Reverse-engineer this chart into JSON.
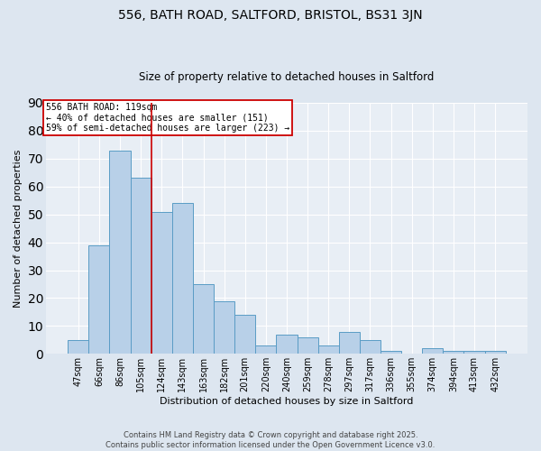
{
  "title1": "556, BATH ROAD, SALTFORD, BRISTOL, BS31 3JN",
  "title2": "Size of property relative to detached houses in Saltford",
  "xlabel": "Distribution of detached houses by size in Saltford",
  "ylabel": "Number of detached properties",
  "categories": [
    "47sqm",
    "66sqm",
    "86sqm",
    "105sqm",
    "124sqm",
    "143sqm",
    "163sqm",
    "182sqm",
    "201sqm",
    "220sqm",
    "240sqm",
    "259sqm",
    "278sqm",
    "297sqm",
    "317sqm",
    "336sqm",
    "355sqm",
    "374sqm",
    "394sqm",
    "413sqm",
    "432sqm"
  ],
  "values": [
    5,
    39,
    73,
    63,
    51,
    54,
    25,
    19,
    14,
    3,
    7,
    6,
    3,
    8,
    5,
    1,
    0,
    2,
    1,
    1,
    1
  ],
  "bar_color": "#b8d0e8",
  "bar_edge_color": "#5a9cc5",
  "vline_x": 3.5,
  "vline_color": "#cc0000",
  "annotation_text": "556 BATH ROAD: 119sqm\n← 40% of detached houses are smaller (151)\n59% of semi-detached houses are larger (223) →",
  "annotation_box_color": "white",
  "annotation_box_edge": "#cc0000",
  "footer1": "Contains HM Land Registry data © Crown copyright and database right 2025.",
  "footer2": "Contains public sector information licensed under the Open Government Licence v3.0.",
  "background_color": "#dde6f0",
  "plot_bg_color": "#e8eef5",
  "ylim": [
    0,
    90
  ],
  "yticks": [
    0,
    10,
    20,
    30,
    40,
    50,
    60,
    70,
    80,
    90
  ],
  "title1_fontsize": 10,
  "title2_fontsize": 8.5,
  "xlabel_fontsize": 8,
  "ylabel_fontsize": 8,
  "tick_fontsize": 7,
  "annotation_fontsize": 7,
  "footer_fontsize": 6
}
